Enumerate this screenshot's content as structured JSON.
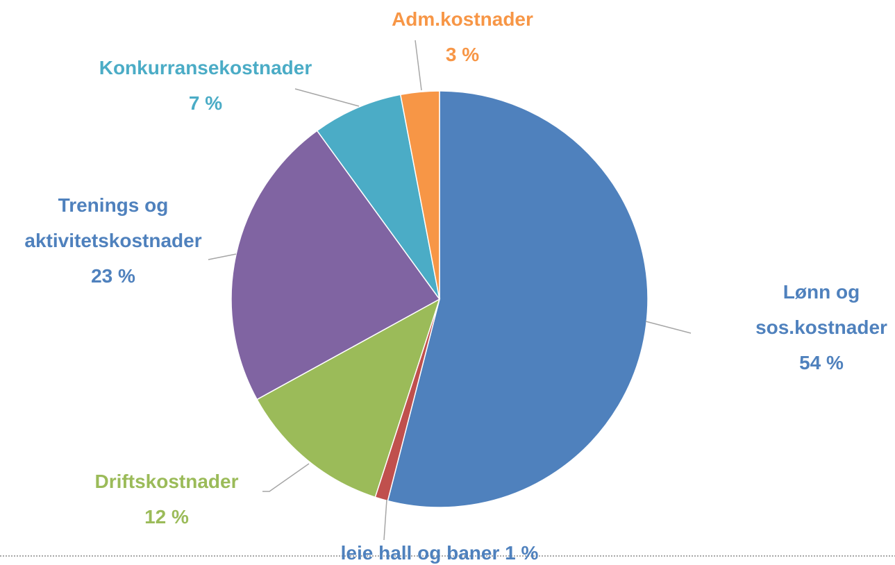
{
  "chart_data": {
    "type": "pie",
    "categories": [
      "Lønn og sos.kostnader",
      "leie hall og baner",
      "Driftskostnader",
      "Trenings og aktivitetskostnader",
      "Konkurransekostnader",
      "Adm.kostnader"
    ],
    "values": [
      54,
      1,
      12,
      23,
      7,
      3
    ],
    "value_labels": [
      "54 %",
      "1 %",
      "12 %",
      "23 %",
      "7 %",
      "3 %"
    ],
    "colors": [
      "#4f81bd",
      "#c0504d",
      "#9bbb59",
      "#8064a2",
      "#4bacc6",
      "#f79646"
    ],
    "label_colors": [
      "#4f81bd",
      "#4f81bd",
      "#9bbb59",
      "#4f81bd",
      "#4bacc6",
      "#f79646"
    ]
  }
}
